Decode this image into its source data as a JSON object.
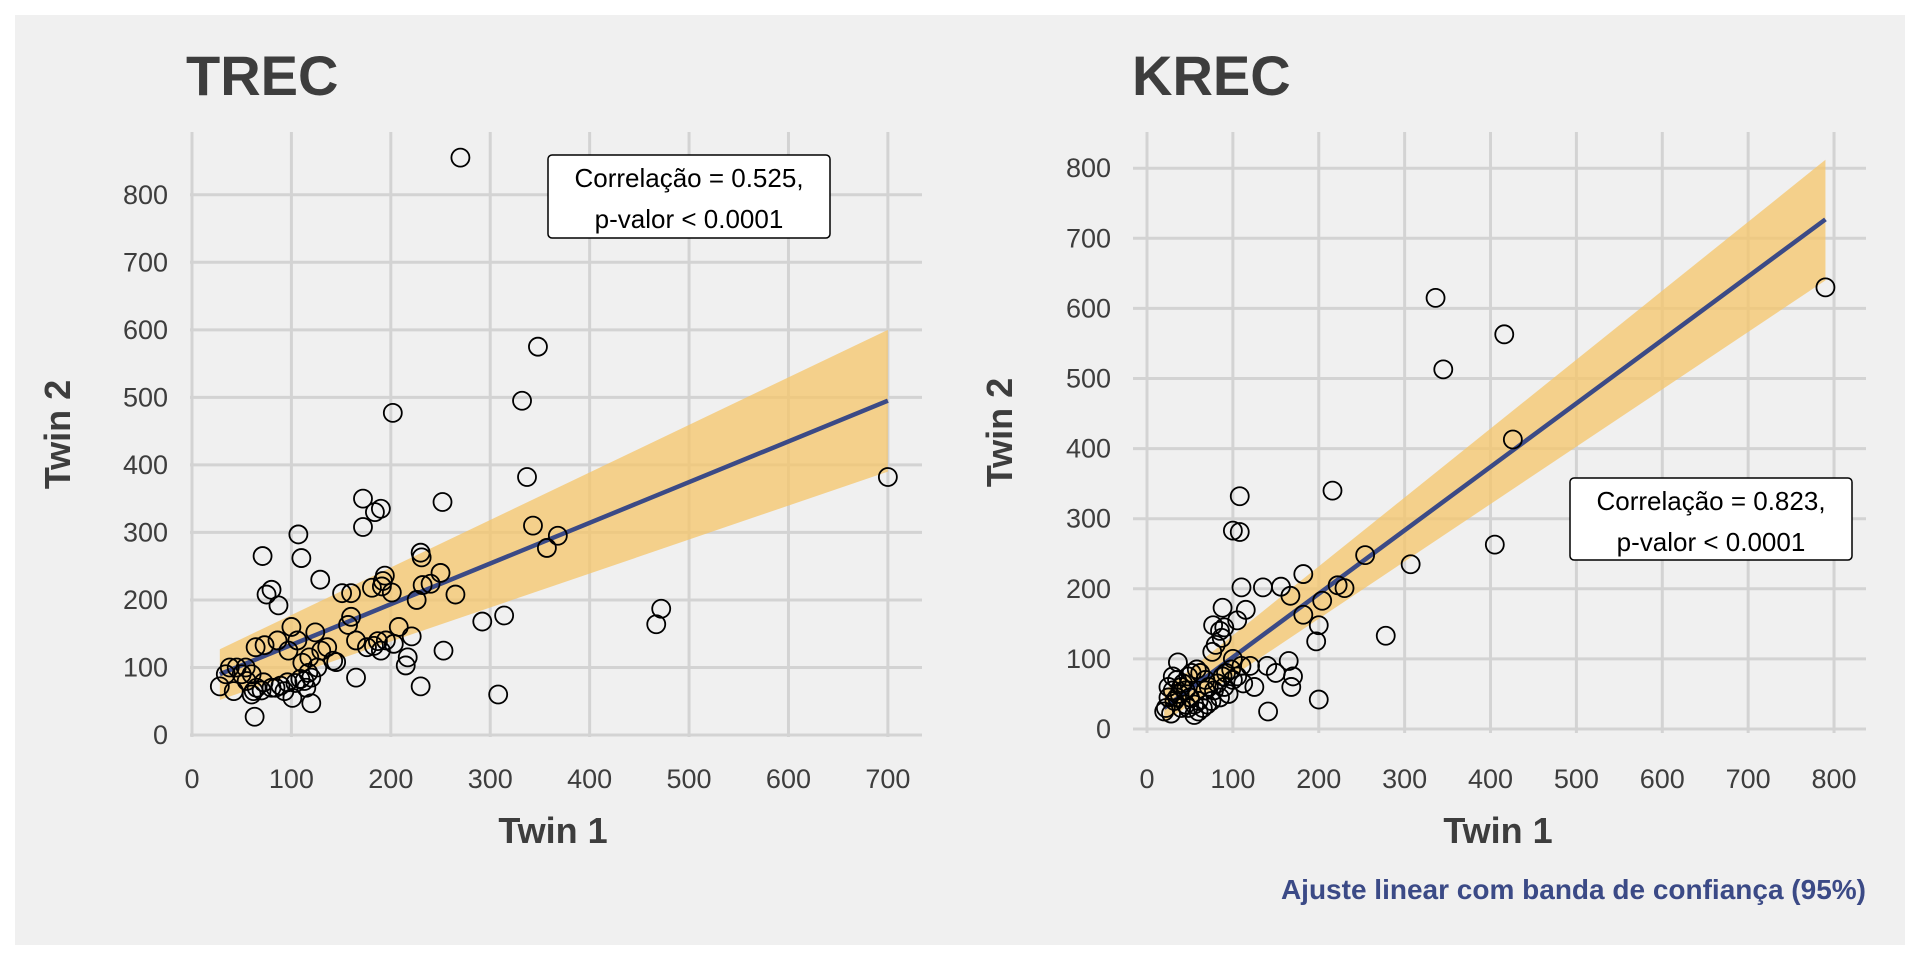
{
  "figure": {
    "background": "#F0F0F0",
    "caption": "Ajuste linear com banda de confiança (95%)",
    "colors": {
      "line": "#3B4A86",
      "band": "#F5C66A",
      "grid": "#D3D3D3",
      "text": "#3D3D3D",
      "points": "#000000",
      "caption": "#3B4A86"
    }
  },
  "chart_data": [
    {
      "type": "scatter",
      "title": "TREC",
      "xlabel": "Twin 1",
      "ylabel": "Twin 2",
      "xlim": [
        0,
        730
      ],
      "ylim": [
        0,
        880
      ],
      "xticks": [
        0,
        100,
        200,
        300,
        400,
        500,
        600,
        700
      ],
      "yticks": [
        0,
        100,
        200,
        300,
        400,
        500,
        600,
        700,
        800
      ],
      "grid": true,
      "annotation": [
        "Correlação = 0.525,",
        "p-valor < 0.0001"
      ],
      "annotation_position": "top-right",
      "fit": {
        "type": "linear",
        "x0": 28,
        "y0": 90,
        "x1": 700,
        "y1": 495,
        "band_x0": [
          52,
          127
        ],
        "band_x1": [
          390,
          600
        ]
      },
      "points": [
        [
          270,
          855
        ],
        [
          348,
          575
        ],
        [
          332,
          495
        ],
        [
          202,
          477
        ],
        [
          337,
          382
        ],
        [
          700,
          382
        ],
        [
          172,
          350
        ],
        [
          252,
          345
        ],
        [
          190,
          335
        ],
        [
          184,
          330
        ],
        [
          172,
          308
        ],
        [
          343,
          310
        ],
        [
          368,
          295
        ],
        [
          107,
          297
        ],
        [
          71,
          265
        ],
        [
          110,
          262
        ],
        [
          230,
          270
        ],
        [
          231,
          263
        ],
        [
          357,
          277
        ],
        [
          194,
          236
        ],
        [
          192,
          228
        ],
        [
          250,
          240
        ],
        [
          232,
          222
        ],
        [
          240,
          224
        ],
        [
          226,
          200
        ],
        [
          265,
          208
        ],
        [
          80,
          215
        ],
        [
          75,
          208
        ],
        [
          87,
          192
        ],
        [
          129,
          230
        ],
        [
          151,
          210
        ],
        [
          160,
          210
        ],
        [
          191,
          220
        ],
        [
          201,
          211
        ],
        [
          181,
          218
        ],
        [
          472,
          187
        ],
        [
          467,
          164
        ],
        [
          314,
          177
        ],
        [
          292,
          168
        ],
        [
          253,
          125
        ],
        [
          100,
          160
        ],
        [
          106,
          140
        ],
        [
          124,
          152
        ],
        [
          157,
          163
        ],
        [
          160,
          175
        ],
        [
          136,
          130
        ],
        [
          165,
          140
        ],
        [
          176,
          130
        ],
        [
          187,
          139
        ],
        [
          195,
          140
        ],
        [
          208,
          160
        ],
        [
          221,
          146
        ],
        [
          203,
          135
        ],
        [
          217,
          115
        ],
        [
          215,
          103
        ],
        [
          190,
          125
        ],
        [
          183,
          132
        ],
        [
          130,
          125
        ],
        [
          142,
          110
        ],
        [
          118,
          115
        ],
        [
          111,
          107
        ],
        [
          126,
          100
        ],
        [
          145,
          108
        ],
        [
          117,
          92
        ],
        [
          113,
          80
        ],
        [
          120,
          85
        ],
        [
          115,
          70
        ],
        [
          109,
          83
        ],
        [
          104,
          77
        ],
        [
          96,
          78
        ],
        [
          89,
          73
        ],
        [
          80,
          70
        ],
        [
          72,
          78
        ],
        [
          70,
          66
        ],
        [
          65,
          70
        ],
        [
          62,
          65
        ],
        [
          55,
          80
        ],
        [
          60,
          90
        ],
        [
          54,
          100
        ],
        [
          64,
          130
        ],
        [
          73,
          133
        ],
        [
          86,
          140
        ],
        [
          97,
          125
        ],
        [
          38,
          100
        ],
        [
          45,
          100
        ],
        [
          28,
          72
        ],
        [
          34,
          90
        ],
        [
          42,
          65
        ],
        [
          50,
          90
        ],
        [
          60,
          60
        ],
        [
          63,
          27
        ],
        [
          101,
          55
        ],
        [
          120,
          47
        ],
        [
          230,
          72
        ],
        [
          165,
          85
        ],
        [
          308,
          60
        ],
        [
          93,
          65
        ],
        [
          84,
          70
        ]
      ]
    },
    {
      "type": "scatter",
      "title": "KREC",
      "xlabel": "Twin 1",
      "ylabel": "Twin 2",
      "xlim": [
        0,
        830
      ],
      "ylim": [
        0,
        830
      ],
      "xticks": [
        0,
        100,
        200,
        300,
        400,
        500,
        600,
        700,
        800
      ],
      "yticks": [
        0,
        100,
        200,
        300,
        400,
        500,
        600,
        700,
        800
      ],
      "grid": true,
      "annotation": [
        "Correlação = 0.823,",
        "p-valor < 0.0001"
      ],
      "annotation_position": "right",
      "fit": {
        "type": "linear",
        "x0": 20,
        "y0": 30,
        "x1": 790,
        "y1": 727,
        "band_x0": [
          10,
          55
        ],
        "band_x1": [
          640,
          812
        ]
      },
      "points": [
        [
          336,
          615
        ],
        [
          416,
          563
        ],
        [
          345,
          513
        ],
        [
          790,
          630
        ],
        [
          426,
          413
        ],
        [
          108,
          332
        ],
        [
          216,
          340
        ],
        [
          100,
          283
        ],
        [
          108,
          281
        ],
        [
          254,
          248
        ],
        [
          307,
          235
        ],
        [
          405,
          263
        ],
        [
          278,
          133
        ],
        [
          230,
          201
        ],
        [
          222,
          205
        ],
        [
          182,
          221
        ],
        [
          204,
          183
        ],
        [
          167,
          190
        ],
        [
          156,
          203
        ],
        [
          110,
          202
        ],
        [
          135,
          202
        ],
        [
          115,
          170
        ],
        [
          182,
          163
        ],
        [
          200,
          148
        ],
        [
          197,
          125
        ],
        [
          105,
          155
        ],
        [
          90,
          145
        ],
        [
          77,
          148
        ],
        [
          87,
          130
        ],
        [
          80,
          120
        ],
        [
          76,
          110
        ],
        [
          100,
          100
        ],
        [
          110,
          90
        ],
        [
          120,
          90
        ],
        [
          140,
          90
        ],
        [
          150,
          80
        ],
        [
          165,
          97
        ],
        [
          170,
          75
        ],
        [
          168,
          60
        ],
        [
          125,
          60
        ],
        [
          141,
          25
        ],
        [
          200,
          42
        ],
        [
          100,
          70
        ],
        [
          90,
          60
        ],
        [
          95,
          50
        ],
        [
          85,
          45
        ],
        [
          75,
          40
        ],
        [
          70,
          35
        ],
        [
          65,
          30
        ],
        [
          60,
          25
        ],
        [
          55,
          35
        ],
        [
          50,
          45
        ],
        [
          45,
          55
        ],
        [
          40,
          60
        ],
        [
          35,
          70
        ],
        [
          30,
          75
        ],
        [
          25,
          60
        ],
        [
          25,
          45
        ],
        [
          22,
          30
        ],
        [
          20,
          25
        ],
        [
          28,
          22
        ],
        [
          32,
          40
        ],
        [
          38,
          50
        ],
        [
          42,
          65
        ],
        [
          48,
          75
        ],
        [
          52,
          80
        ],
        [
          58,
          85
        ],
        [
          62,
          80
        ],
        [
          68,
          70
        ],
        [
          72,
          60
        ],
        [
          78,
          55
        ],
        [
          82,
          65
        ],
        [
          88,
          75
        ],
        [
          92,
          80
        ],
        [
          98,
          85
        ],
        [
          105,
          75
        ],
        [
          112,
          65
        ],
        [
          60,
          40
        ],
        [
          55,
          20
        ],
        [
          48,
          30
        ],
        [
          36,
          95
        ],
        [
          40,
          30
        ],
        [
          45,
          35
        ],
        [
          68,
          55
        ],
        [
          35,
          45
        ],
        [
          88,
          173
        ],
        [
          85,
          140
        ],
        [
          30,
          55
        ]
      ]
    }
  ]
}
